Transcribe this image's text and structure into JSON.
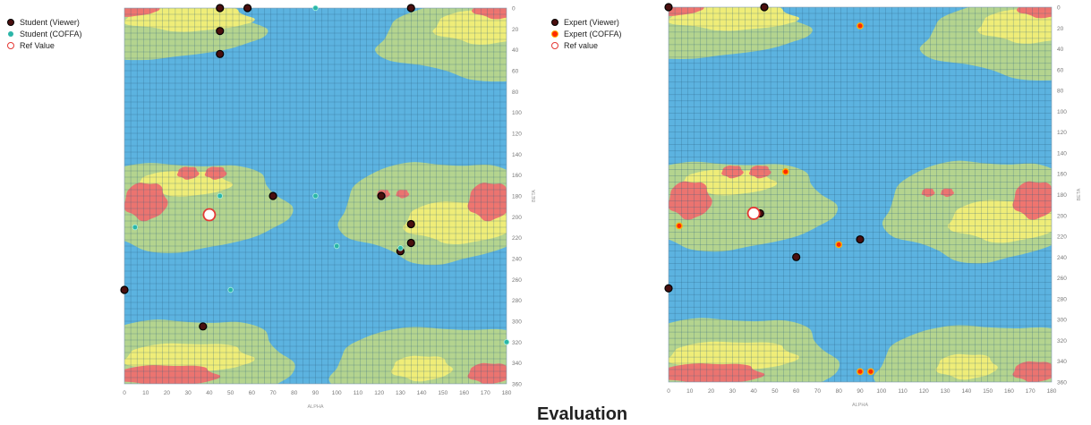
{
  "caption": "Evaluation",
  "colors": {
    "blue": "#5cb3e0",
    "green": "#b8d68a",
    "yellow": "#f2ee77",
    "red": "#ee6f6f",
    "grid": "#2c5f80",
    "viewer_fill": "#4a0f0f",
    "student_coffa": "#2bb5a8",
    "expert_coffa": "#ff2a00",
    "ref_ring": "#e53935"
  },
  "chart_data": [
    {
      "type": "scatter",
      "xlabel": "ALPHA",
      "ylabel": "BETA",
      "xlim": [
        0,
        180
      ],
      "ylim": [
        0,
        360
      ],
      "y_inverted": true,
      "x_ticks": [
        0,
        10,
        20,
        30,
        40,
        50,
        60,
        70,
        80,
        90,
        100,
        110,
        120,
        130,
        140,
        150,
        160,
        170,
        180
      ],
      "y_ticks": [
        0,
        20,
        40,
        60,
        80,
        100,
        120,
        140,
        160,
        180,
        200,
        220,
        240,
        260,
        280,
        300,
        320,
        340,
        360
      ],
      "legend": [
        {
          "label": "Student (Viewer)",
          "marker": "viewer"
        },
        {
          "label": "Student (COFFA)",
          "marker": "coffa"
        },
        {
          "label": "Ref Value",
          "marker": "ref"
        }
      ],
      "series": [
        {
          "name": "Student (Viewer)",
          "marker": "viewer",
          "points": [
            [
              45,
              0
            ],
            [
              58,
              0
            ],
            [
              135,
              0
            ],
            [
              45,
              22
            ],
            [
              45,
              44
            ],
            [
              70,
              180
            ],
            [
              121,
              180
            ],
            [
              135,
              207
            ],
            [
              135,
              225
            ],
            [
              130,
              233
            ],
            [
              0,
              270
            ],
            [
              37,
              305
            ]
          ]
        },
        {
          "name": "Student (COFFA)",
          "marker": "coffa",
          "points": [
            [
              90,
              0
            ],
            [
              90,
              180
            ],
            [
              45,
              180
            ],
            [
              5,
              210
            ],
            [
              100,
              228
            ],
            [
              130,
              230
            ],
            [
              50,
              270
            ],
            [
              180,
              320
            ]
          ]
        },
        {
          "name": "Ref Value",
          "marker": "ref",
          "points": [
            [
              40,
              198
            ]
          ]
        }
      ]
    },
    {
      "type": "scatter",
      "xlabel": "ALPHA",
      "ylabel": "BETA",
      "xlim": [
        0,
        180
      ],
      "ylim": [
        0,
        360
      ],
      "y_inverted": true,
      "x_ticks": [
        0,
        10,
        20,
        30,
        40,
        50,
        60,
        70,
        80,
        90,
        100,
        110,
        120,
        130,
        140,
        150,
        160,
        170,
        180
      ],
      "y_ticks": [
        0,
        20,
        40,
        60,
        80,
        100,
        120,
        140,
        160,
        180,
        200,
        220,
        240,
        260,
        280,
        300,
        320,
        340,
        360
      ],
      "legend": [
        {
          "label": "Expert (Viewer)",
          "marker": "viewer"
        },
        {
          "label": "Expert (COFFA)",
          "marker": "coffa"
        },
        {
          "label": "Ref value",
          "marker": "ref"
        }
      ],
      "series": [
        {
          "name": "Expert (Viewer)",
          "marker": "viewer",
          "points": [
            [
              0,
              0
            ],
            [
              45,
              0
            ],
            [
              43,
              198
            ],
            [
              90,
              223
            ],
            [
              60,
              240
            ],
            [
              0,
              270
            ]
          ]
        },
        {
          "name": "Expert (COFFA)",
          "marker": "coffa",
          "points": [
            [
              90,
              18
            ],
            [
              55,
              158
            ],
            [
              5,
              210
            ],
            [
              80,
              228
            ],
            [
              90,
              350
            ],
            [
              95,
              350
            ]
          ]
        },
        {
          "name": "Ref value",
          "marker": "ref",
          "points": [
            [
              40,
              198
            ]
          ]
        }
      ]
    }
  ]
}
